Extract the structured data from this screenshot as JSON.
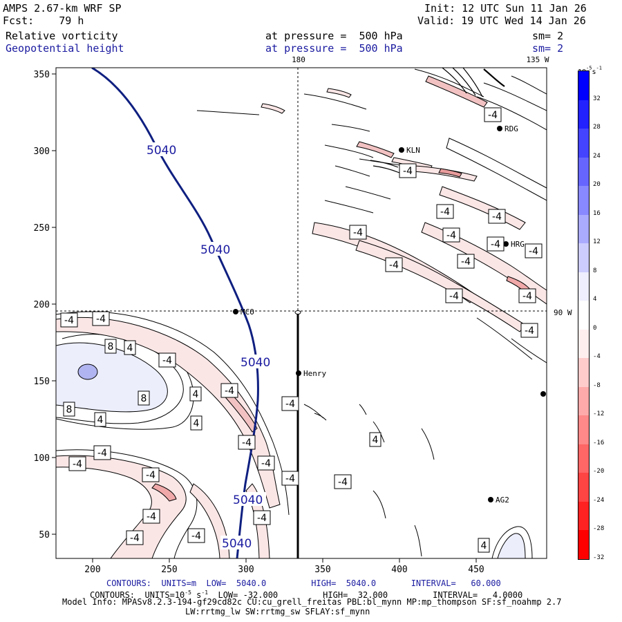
{
  "header": {
    "title": "AMPS 2.67-km WRF SP",
    "forecast": "Fcst:    79 h",
    "init": "Init: 12 UTC Sun 11 Jan 26",
    "valid": "Valid: 19 UTC Wed 14 Jan 26",
    "field1_name": "Relative vorticity",
    "field1_level": "at pressure =  500 hPa",
    "field1_smooth": "sm= 2",
    "field2_name": "Geopotential height",
    "field2_level": "at pressure =  500 hPa",
    "field2_smooth": "sm= 2"
  },
  "map": {
    "x_ticks": [
      "200",
      "250",
      "300",
      "350",
      "400",
      "450"
    ],
    "y_ticks": [
      "350",
      "300",
      "250",
      "200",
      "150",
      "100",
      "50"
    ],
    "lon_top_180": "180",
    "lon_top_135w": "135 W",
    "lon_right_90w": "90 W",
    "stations": [
      "RDG",
      "KLN",
      "HRG",
      "MCO",
      "Henry",
      "AG2"
    ],
    "height_contour_label": "5040",
    "vort_labels": [
      "-4",
      "8",
      "4"
    ]
  },
  "colorbar": {
    "unit": "10",
    "unit_exp": "-5",
    "unit_tail": "s",
    "unit_tail_exp": "-1",
    "ticks": [
      "32",
      "28",
      "24",
      "20",
      "16",
      "12",
      "8",
      "4",
      "0",
      "-4",
      "-8",
      "-12",
      "-16",
      "-20",
      "-24",
      "-28",
      "-32"
    ],
    "colors": [
      "#0000ff",
      "#2222ff",
      "#4444ff",
      "#6666ff",
      "#8888ff",
      "#aaaaff",
      "#ccccff",
      "#eeeeff",
      "#ffffff",
      "#ffeeee",
      "#ffcccc",
      "#ffaaaa",
      "#ff8888",
      "#ff6666",
      "#ff4444",
      "#ff2222",
      "#ff0000"
    ]
  },
  "footer": {
    "line1": "CONTOURS:  UNITS=m  LOW=  5040.0         HIGH=  5040.0       INTERVAL=   60.000",
    "line2a": "CONTOURS:  UNITS=10",
    "line2exp": "-5",
    "line2b": " s",
    "line2exp2": "-1",
    "line2c": "  LOW= -32.000         HIGH=  32.000         INTERVAL=   4.0000",
    "line3": "Model Info: MPASv8.2.3-194-gf29cd82c CU:cu_grell_freitas PBL:bl_mynn MP:mp_thompson SF:sf_noahmp 2.7",
    "line4": "LW:rrtmg_lw SW:rrtmg_sw SFLAY:sf_mynn"
  }
}
